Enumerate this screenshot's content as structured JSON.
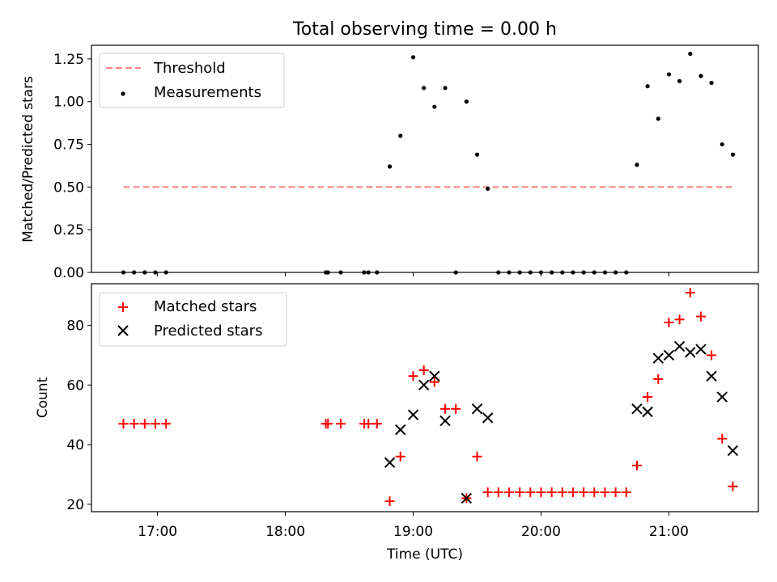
{
  "figure": {
    "title": "Total observing time = 0.00 h"
  },
  "chart_data": [
    {
      "type": "scatter",
      "panel": "top",
      "ylabel": "Matched/Predicted stars",
      "ylim": [
        0,
        1.33
      ],
      "yticks": [
        0.0,
        0.25,
        0.5,
        0.75,
        1.0,
        1.25
      ],
      "ytick_labels": [
        "0.00",
        "0.25",
        "0.50",
        "0.75",
        "1.00",
        "1.25"
      ],
      "xlim": [
        "16:29",
        "21:42"
      ],
      "xticks": [
        "17:00",
        "18:00",
        "19:00",
        "20:00",
        "21:00"
      ],
      "legend_position": "upper-left",
      "threshold": {
        "name": "Threshold",
        "value": 0.5,
        "x_range": [
          "16:44",
          "21:30"
        ],
        "color": "#ff7f7f",
        "style": "dashed"
      },
      "series": [
        {
          "name": "Measurements",
          "color": "#000000",
          "marker": "dot",
          "points": [
            [
              "16:44",
              0.0
            ],
            [
              "16:49",
              0.0
            ],
            [
              "16:54",
              0.0
            ],
            [
              "16:59",
              0.0
            ],
            [
              "17:04",
              0.0
            ],
            [
              "18:19",
              0.0
            ],
            [
              "18:20",
              0.0
            ],
            [
              "18:26",
              0.0
            ],
            [
              "18:37",
              0.0
            ],
            [
              "18:39",
              0.0
            ],
            [
              "18:43",
              0.0
            ],
            [
              "18:49",
              0.62
            ],
            [
              "18:54",
              0.8
            ],
            [
              "19:00",
              1.26
            ],
            [
              "19:05",
              1.08
            ],
            [
              "19:10",
              0.97
            ],
            [
              "19:15",
              1.08
            ],
            [
              "19:20",
              0.0
            ],
            [
              "19:25",
              1.0
            ],
            [
              "19:30",
              0.69
            ],
            [
              "19:35",
              0.49
            ],
            [
              "19:40",
              0.0
            ],
            [
              "19:45",
              0.0
            ],
            [
              "19:50",
              0.0
            ],
            [
              "19:55",
              0.0
            ],
            [
              "20:00",
              0.0
            ],
            [
              "20:05",
              0.0
            ],
            [
              "20:10",
              0.0
            ],
            [
              "20:15",
              0.0
            ],
            [
              "20:20",
              0.0
            ],
            [
              "20:25",
              0.0
            ],
            [
              "20:30",
              0.0
            ],
            [
              "20:35",
              0.0
            ],
            [
              "20:40",
              0.0
            ],
            [
              "20:45",
              0.63
            ],
            [
              "20:50",
              1.09
            ],
            [
              "20:55",
              0.9
            ],
            [
              "21:00",
              1.16
            ],
            [
              "21:05",
              1.12
            ],
            [
              "21:10",
              1.28
            ],
            [
              "21:15",
              1.15
            ],
            [
              "21:20",
              1.11
            ],
            [
              "21:25",
              0.75
            ],
            [
              "21:30",
              0.69
            ]
          ]
        }
      ]
    },
    {
      "type": "scatter",
      "panel": "bottom",
      "xlabel": "Time (UTC)",
      "ylabel": "Count",
      "ylim": [
        17.5,
        94
      ],
      "yticks": [
        20,
        40,
        60,
        80
      ],
      "ytick_labels": [
        "20",
        "40",
        "60",
        "80"
      ],
      "xlim": [
        "16:29",
        "21:42"
      ],
      "xticks": [
        "17:00",
        "18:00",
        "19:00",
        "20:00",
        "21:00"
      ],
      "xtick_labels": [
        "17:00",
        "18:00",
        "19:00",
        "20:00",
        "21:00"
      ],
      "legend_position": "upper-left",
      "series": [
        {
          "name": "Matched stars",
          "color": "#ff0000",
          "marker": "plus",
          "points": [
            [
              "16:44",
              47
            ],
            [
              "16:49",
              47
            ],
            [
              "16:54",
              47
            ],
            [
              "16:59",
              47
            ],
            [
              "17:04",
              47
            ],
            [
              "18:19",
              47
            ],
            [
              "18:20",
              47
            ],
            [
              "18:26",
              47
            ],
            [
              "18:37",
              47
            ],
            [
              "18:39",
              47
            ],
            [
              "18:43",
              47
            ],
            [
              "18:49",
              21
            ],
            [
              "18:54",
              36
            ],
            [
              "19:00",
              63
            ],
            [
              "19:05",
              65
            ],
            [
              "19:10",
              61
            ],
            [
              "19:15",
              52
            ],
            [
              "19:20",
              52
            ],
            [
              "19:25",
              22
            ],
            [
              "19:30",
              36
            ],
            [
              "19:35",
              24
            ],
            [
              "19:40",
              24
            ],
            [
              "19:45",
              24
            ],
            [
              "19:50",
              24
            ],
            [
              "19:55",
              24
            ],
            [
              "20:00",
              24
            ],
            [
              "20:05",
              24
            ],
            [
              "20:10",
              24
            ],
            [
              "20:15",
              24
            ],
            [
              "20:20",
              24
            ],
            [
              "20:25",
              24
            ],
            [
              "20:30",
              24
            ],
            [
              "20:35",
              24
            ],
            [
              "20:40",
              24
            ],
            [
              "20:45",
              33
            ],
            [
              "20:50",
              56
            ],
            [
              "20:55",
              62
            ],
            [
              "21:00",
              81
            ],
            [
              "21:05",
              82
            ],
            [
              "21:10",
              91
            ],
            [
              "21:15",
              83
            ],
            [
              "21:20",
              70
            ],
            [
              "21:25",
              42
            ],
            [
              "21:30",
              26
            ]
          ]
        },
        {
          "name": "Predicted stars",
          "color": "#000000",
          "marker": "x",
          "points": [
            [
              "18:49",
              34
            ],
            [
              "18:54",
              45
            ],
            [
              "19:00",
              50
            ],
            [
              "19:05",
              60
            ],
            [
              "19:10",
              63
            ],
            [
              "19:15",
              48
            ],
            [
              "19:25",
              22
            ],
            [
              "19:30",
              52
            ],
            [
              "19:35",
              49
            ],
            [
              "20:45",
              52
            ],
            [
              "20:50",
              51
            ],
            [
              "20:55",
              69
            ],
            [
              "21:00",
              70
            ],
            [
              "21:05",
              73
            ],
            [
              "21:10",
              71
            ],
            [
              "21:15",
              72
            ],
            [
              "21:20",
              63
            ],
            [
              "21:25",
              56
            ],
            [
              "21:30",
              38
            ]
          ]
        }
      ]
    }
  ]
}
